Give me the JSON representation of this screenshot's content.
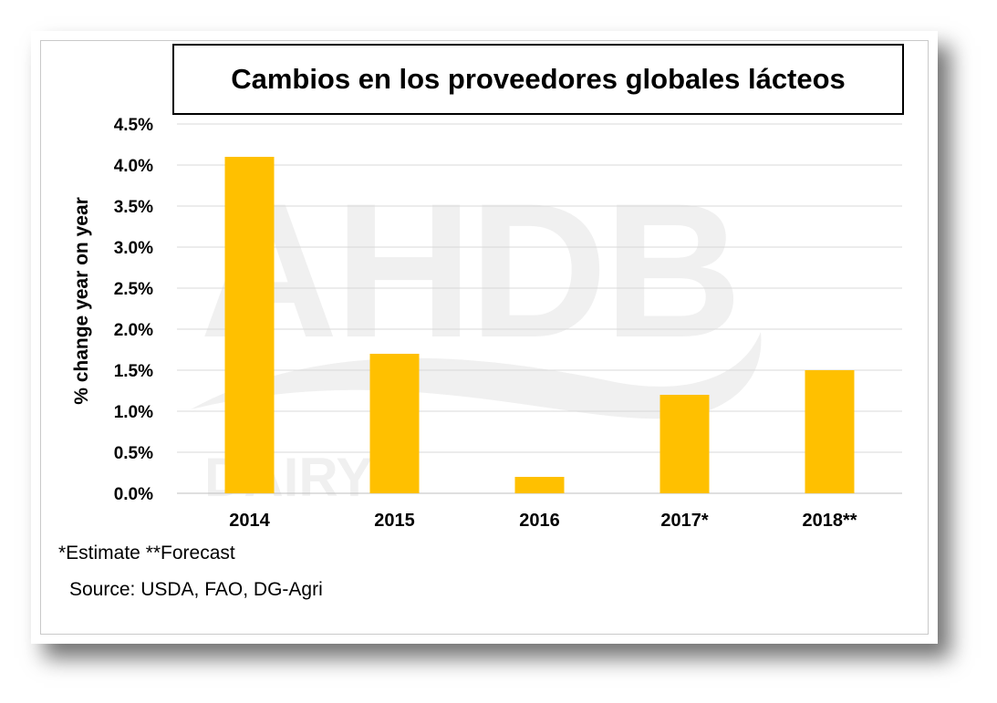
{
  "chart_data": {
    "type": "bar",
    "title": "Cambios en los proveedores globales lácteos",
    "ylabel": "% change year on year",
    "xlabel": "",
    "categories": [
      "2014",
      "2015",
      "2016",
      "2017*",
      "2018**"
    ],
    "values": [
      4.1,
      1.7,
      0.2,
      1.2,
      1.5
    ],
    "ylim": [
      0,
      4.5
    ],
    "yticks": [
      "0.0%",
      "0.5%",
      "1.0%",
      "1.5%",
      "2.0%",
      "2.5%",
      "3.0%",
      "3.5%",
      "4.0%",
      "4.5%"
    ],
    "grid": true,
    "bar_color": "#FFC000",
    "grid_color": "#d9d9d9",
    "watermark": "AHDB DAIRY"
  },
  "notes": {
    "estimate": "*Estimate **Forecast",
    "source": "Source:  USDA, FAO, DG-Agri"
  }
}
